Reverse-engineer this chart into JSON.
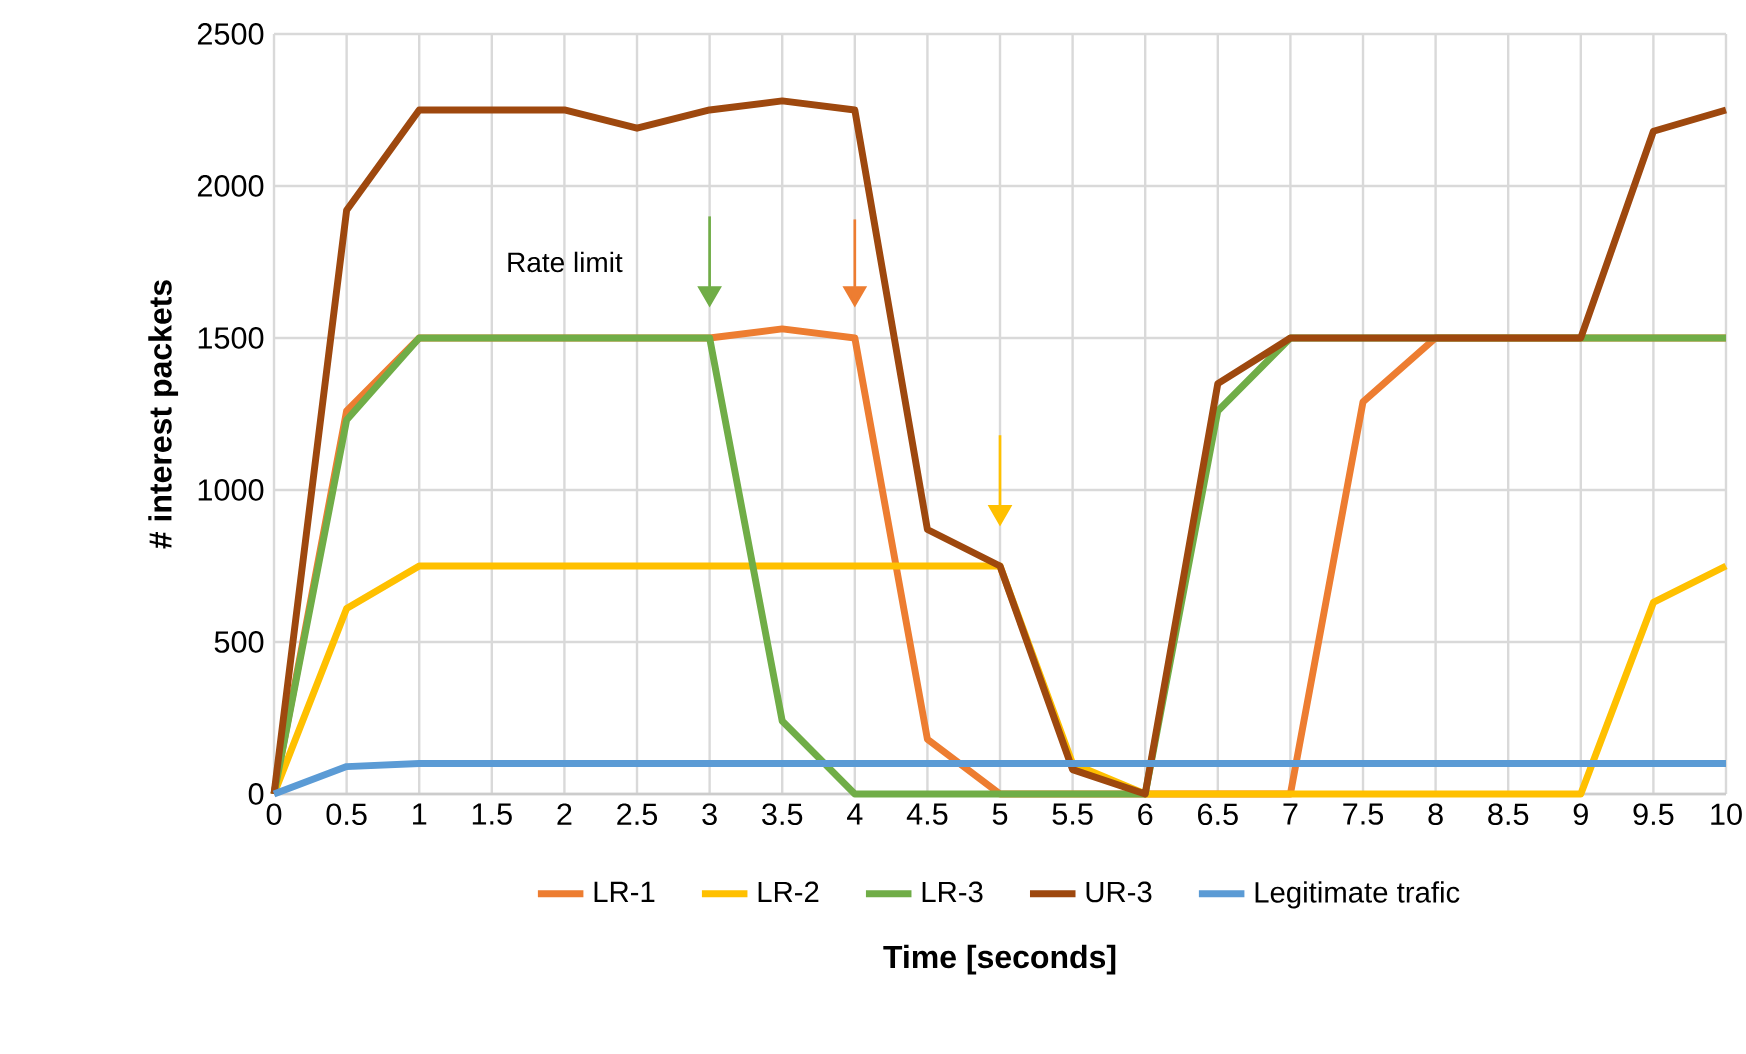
{
  "chart_data": {
    "type": "line",
    "xlabel": "Time [seconds]",
    "ylabel": "# interest packets",
    "categories": [
      "0",
      "0.5",
      "1",
      "1.5",
      "2",
      "2.5",
      "3",
      "3.5",
      "4",
      "4.5",
      "5",
      "5.5",
      "6",
      "6.5",
      "7",
      "7.5",
      "8",
      "8.5",
      "9",
      "9.5",
      "10"
    ],
    "series": [
      {
        "name": "LR-1",
        "color": "#ed7d31",
        "values": [
          0,
          1260,
          1500,
          1500,
          1500,
          1500,
          1500,
          1530,
          1500,
          180,
          0,
          0,
          0,
          0,
          0,
          1290,
          1500,
          1500,
          1500,
          1500,
          1500
        ]
      },
      {
        "name": "LR-2",
        "color": "#ffc000",
        "values": [
          0,
          610,
          750,
          750,
          750,
          750,
          750,
          750,
          750,
          750,
          750,
          100,
          0,
          0,
          0,
          0,
          0,
          0,
          0,
          630,
          750
        ]
      },
      {
        "name": "LR-3",
        "color": "#70ad47",
        "values": [
          0,
          1230,
          1500,
          1500,
          1500,
          1500,
          1500,
          240,
          0,
          0,
          0,
          0,
          0,
          1260,
          1500,
          1500,
          1500,
          1500,
          1500,
          1500,
          1500
        ]
      },
      {
        "name": "UR-3",
        "color": "#9e480e",
        "values": [
          0,
          1920,
          2250,
          2250,
          2250,
          2190,
          2250,
          2280,
          2250,
          870,
          750,
          80,
          0,
          1350,
          1500,
          1500,
          1500,
          1500,
          1500,
          2180,
          2250
        ]
      },
      {
        "name": "Legitimate trafic",
        "color": "#5b9bd5",
        "values": [
          0,
          90,
          100,
          100,
          100,
          100,
          100,
          100,
          100,
          100,
          100,
          100,
          100,
          100,
          100,
          100,
          100,
          100,
          100,
          100,
          100
        ]
      }
    ],
    "ylim": [
      0,
      2500
    ],
    "yticks": [
      0,
      500,
      1000,
      1500,
      2000,
      2500
    ],
    "annotations": [
      "Rate limit"
    ],
    "grid": true,
    "legend": "bottom",
    "marker": "none",
    "line_style": "solid"
  }
}
